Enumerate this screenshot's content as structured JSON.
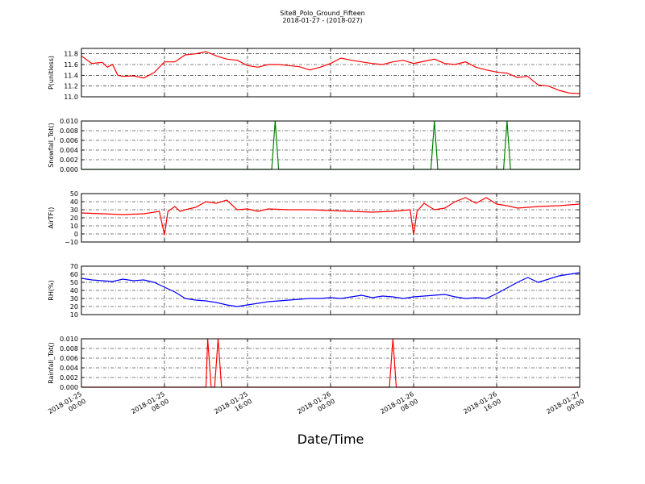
{
  "title": "Site8_Polo_Ground_Fifteen",
  "subtitle": "2018-01-27 - (2018-027)",
  "chart_data": {
    "type": "line",
    "xlabel": "Date/Time",
    "x_range": [
      "2018-01-25 00:00",
      "2018-01-27 00:00"
    ],
    "x_ticks": [
      "2018-01-25 00:00",
      "2018-01-25 08:00",
      "2018-01-25 16:00",
      "2018-01-26 00:00",
      "2018-01-26 08:00",
      "2018-01-26 16:00",
      "2018-01-27 00:00"
    ],
    "x_tick_labels": [
      [
        "2018-01-25",
        "00:00"
      ],
      [
        "2018-01-25",
        "08:00"
      ],
      [
        "2018-01-25",
        "16:00"
      ],
      [
        "2018-01-26",
        "00:00"
      ],
      [
        "2018-01-26",
        "08:00"
      ],
      [
        "2018-01-26",
        "16:00"
      ],
      [
        "2018-01-27",
        "00:00"
      ]
    ],
    "grid": true,
    "panels": [
      {
        "ylabel": "P(unitless)",
        "color": "#ff0000",
        "ylim": [
          11.0,
          11.9
        ],
        "yticks": [
          11.0,
          11.2,
          11.4,
          11.6,
          11.8
        ],
        "ytick_labels": [
          "11.0",
          "11.2",
          "11.4",
          "11.6",
          "11.8"
        ],
        "series": [
          {
            "x": [
              "2018-01-25 00:00",
              "2018-01-25 01:00",
              "2018-01-25 02:00",
              "2018-01-25 02:30",
              "2018-01-25 03:00",
              "2018-01-25 03:30",
              "2018-01-25 04:00",
              "2018-01-25 05:00",
              "2018-01-25 06:00",
              "2018-01-25 07:00",
              "2018-01-25 08:00",
              "2018-01-25 09:00",
              "2018-01-25 10:00",
              "2018-01-25 11:00",
              "2018-01-25 12:00",
              "2018-01-25 13:00",
              "2018-01-25 14:00",
              "2018-01-25 15:00",
              "2018-01-25 16:00",
              "2018-01-25 17:00",
              "2018-01-25 18:00",
              "2018-01-25 19:00",
              "2018-01-25 20:00",
              "2018-01-25 21:00",
              "2018-01-25 22:00",
              "2018-01-25 23:00",
              "2018-01-26 00:00",
              "2018-01-26 01:00",
              "2018-01-26 02:00",
              "2018-01-26 03:00",
              "2018-01-26 04:00",
              "2018-01-26 05:00",
              "2018-01-26 06:00",
              "2018-01-26 07:00",
              "2018-01-26 08:00",
              "2018-01-26 09:00",
              "2018-01-26 10:00",
              "2018-01-26 11:00",
              "2018-01-26 12:00",
              "2018-01-26 13:00",
              "2018-01-26 14:00",
              "2018-01-26 15:00",
              "2018-01-26 16:00",
              "2018-01-26 17:00",
              "2018-01-26 18:00",
              "2018-01-26 19:00",
              "2018-01-26 20:00",
              "2018-01-26 21:00",
              "2018-01-26 22:00",
              "2018-01-26 23:00",
              "2018-01-27 00:00"
            ],
            "y": [
              11.76,
              11.62,
              11.64,
              11.55,
              11.6,
              11.4,
              11.38,
              11.39,
              11.35,
              11.45,
              11.65,
              11.65,
              11.78,
              11.8,
              11.84,
              11.76,
              11.7,
              11.68,
              11.58,
              11.55,
              11.6,
              11.6,
              11.58,
              11.56,
              11.5,
              11.55,
              11.62,
              11.72,
              11.68,
              11.65,
              11.62,
              11.6,
              11.65,
              11.68,
              11.62,
              11.66,
              11.7,
              11.62,
              11.6,
              11.65,
              11.55,
              11.5,
              11.46,
              11.44,
              11.36,
              11.38,
              11.22,
              11.2,
              11.12,
              11.07,
              11.06
            ]
          }
        ]
      },
      {
        "ylabel": "Snowfall_Tot()",
        "color": "#007f00",
        "ylim": [
          0.0,
          0.01
        ],
        "yticks": [
          0.0,
          0.002,
          0.004,
          0.006,
          0.008,
          0.01
        ],
        "ytick_labels": [
          "0.000",
          "0.002",
          "0.004",
          "0.006",
          "0.008",
          "0.010"
        ],
        "series": [
          {
            "x": [
              "2018-01-25 00:00",
              "2018-01-25 18:20",
              "2018-01-25 18:40",
              "2018-01-25 19:00",
              "2018-01-26 09:40",
              "2018-01-26 10:00",
              "2018-01-26 10:20",
              "2018-01-26 16:40",
              "2018-01-26 17:00",
              "2018-01-26 17:20",
              "2018-01-27 00:00"
            ],
            "y": [
              0,
              0,
              0.01,
              0,
              0,
              0.01,
              0,
              0,
              0.01,
              0,
              0
            ]
          }
        ]
      },
      {
        "ylabel": "AirTF()",
        "color": "#ff0000",
        "ylim": [
          -10,
          50
        ],
        "yticks": [
          -10,
          0,
          10,
          20,
          30,
          40,
          50
        ],
        "ytick_labels": [
          "−10",
          "0",
          "10",
          "20",
          "30",
          "40",
          "50"
        ],
        "series": [
          {
            "x": [
              "2018-01-25 00:00",
              "2018-01-25 02:00",
              "2018-01-25 04:00",
              "2018-01-25 06:00",
              "2018-01-25 07:30",
              "2018-01-25 08:00",
              "2018-01-25 08:20",
              "2018-01-25 09:00",
              "2018-01-25 09:30",
              "2018-01-25 10:00",
              "2018-01-25 11:00",
              "2018-01-25 12:00",
              "2018-01-25 13:00",
              "2018-01-25 14:00",
              "2018-01-25 15:00",
              "2018-01-25 16:00",
              "2018-01-25 17:00",
              "2018-01-25 18:00",
              "2018-01-25 20:00",
              "2018-01-25 22:00",
              "2018-01-26 00:00",
              "2018-01-26 02:00",
              "2018-01-26 04:00",
              "2018-01-26 06:00",
              "2018-01-26 07:40",
              "2018-01-26 08:00",
              "2018-01-26 08:20",
              "2018-01-26 09:00",
              "2018-01-26 10:00",
              "2018-01-26 11:00",
              "2018-01-26 12:00",
              "2018-01-26 13:00",
              "2018-01-26 14:00",
              "2018-01-26 15:00",
              "2018-01-26 16:00",
              "2018-01-26 17:00",
              "2018-01-26 18:00",
              "2018-01-26 20:00",
              "2018-01-26 22:00",
              "2018-01-27 00:00"
            ],
            "y": [
              26,
              25,
              24,
              25,
              28,
              -1,
              28,
              34,
              28,
              30,
              33,
              40,
              38,
              42,
              30,
              31,
              28,
              31,
              30,
              30,
              29,
              28,
              27,
              28,
              30,
              -1,
              28,
              38,
              30,
              32,
              40,
              45,
              38,
              45,
              37,
              35,
              32,
              34,
              35,
              37
            ]
          }
        ]
      },
      {
        "ylabel": "RH(%)",
        "color": "#0000ff",
        "ylim": [
          10,
          70
        ],
        "yticks": [
          10,
          20,
          30,
          40,
          50,
          60,
          70
        ],
        "ytick_labels": [
          "10",
          "20",
          "30",
          "40",
          "50",
          "60",
          "70"
        ],
        "series": [
          {
            "x": [
              "2018-01-25 00:00",
              "2018-01-25 01:00",
              "2018-01-25 02:00",
              "2018-01-25 03:00",
              "2018-01-25 04:00",
              "2018-01-25 05:00",
              "2018-01-25 06:00",
              "2018-01-25 07:00",
              "2018-01-25 08:00",
              "2018-01-25 09:00",
              "2018-01-25 10:00",
              "2018-01-25 11:00",
              "2018-01-25 12:00",
              "2018-01-25 13:00",
              "2018-01-25 14:00",
              "2018-01-25 15:00",
              "2018-01-25 16:00",
              "2018-01-25 17:00",
              "2018-01-25 18:00",
              "2018-01-25 19:00",
              "2018-01-25 20:00",
              "2018-01-25 21:00",
              "2018-01-25 22:00",
              "2018-01-25 23:00",
              "2018-01-26 00:00",
              "2018-01-26 01:00",
              "2018-01-26 02:00",
              "2018-01-26 03:00",
              "2018-01-26 04:00",
              "2018-01-26 05:00",
              "2018-01-26 06:00",
              "2018-01-26 07:00",
              "2018-01-26 08:00",
              "2018-01-26 09:00",
              "2018-01-26 10:00",
              "2018-01-26 11:00",
              "2018-01-26 12:00",
              "2018-01-26 13:00",
              "2018-01-26 14:00",
              "2018-01-26 15:00",
              "2018-01-26 16:00",
              "2018-01-26 17:00",
              "2018-01-26 18:00",
              "2018-01-26 19:00",
              "2018-01-26 20:00",
              "2018-01-26 21:00",
              "2018-01-26 22:00",
              "2018-01-26 23:00",
              "2018-01-27 00:00"
            ],
            "y": [
              55,
              53,
              52,
              51,
              54,
              52,
              53,
              50,
              44,
              38,
              30,
              28,
              27,
              25,
              22,
              20,
              22,
              24,
              26,
              27,
              28,
              29,
              30,
              30,
              31,
              30,
              32,
              34,
              31,
              33,
              32,
              30,
              32,
              33,
              34,
              35,
              32,
              30,
              31,
              30,
              36,
              43,
              50,
              56,
              50,
              54,
              58,
              60,
              62
            ]
          }
        ]
      },
      {
        "ylabel": "Rainfall_Tot()",
        "color": "#ff0000",
        "ylim": [
          0.0,
          0.01
        ],
        "yticks": [
          0.0,
          0.002,
          0.004,
          0.006,
          0.008,
          0.01
        ],
        "ytick_labels": [
          "0.000",
          "0.002",
          "0.004",
          "0.006",
          "0.008",
          "0.010"
        ],
        "series": [
          {
            "x": [
              "2018-01-25 00:00",
              "2018-01-25 12:00",
              "2018-01-25 12:10",
              "2018-01-25 12:30",
              "2018-01-25 12:50",
              "2018-01-25 13:10",
              "2018-01-25 13:30",
              "2018-01-26 05:40",
              "2018-01-26 06:00",
              "2018-01-26 06:20",
              "2018-01-27 00:00"
            ],
            "y": [
              0,
              0,
              0.01,
              0,
              0,
              0.01,
              0,
              0,
              0.01,
              0,
              0
            ]
          }
        ]
      }
    ]
  }
}
